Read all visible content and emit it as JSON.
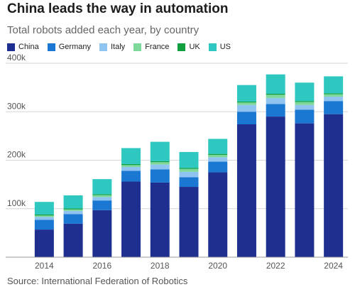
{
  "header": {
    "title": "China leads the way in automation",
    "subtitle": "Total robots added each year, by country"
  },
  "footer": {
    "source": "Source: International Federation of Robotics"
  },
  "chart_data": {
    "type": "bar",
    "stacked": true,
    "categories": [
      "2014",
      "2015",
      "2016",
      "2017",
      "2018",
      "2019",
      "2020",
      "2021",
      "2022",
      "2023",
      "2024"
    ],
    "x_tick_labels": [
      "2014",
      "2016",
      "2018",
      "2020",
      "2022",
      "2024"
    ],
    "y_ticks": [
      100000,
      200000,
      300000,
      400000
    ],
    "y_tick_labels": [
      "100k",
      "200k",
      "300k",
      "400k"
    ],
    "ylim": [
      0,
      400000
    ],
    "grid": true,
    "legend_position": "top-left",
    "series": [
      {
        "name": "China",
        "color": "#1f2f8f",
        "values": [
          57000,
          69000,
          97000,
          156000,
          154000,
          145000,
          175000,
          274000,
          290000,
          276000,
          295000
        ]
      },
      {
        "name": "Germany",
        "color": "#1a78d2",
        "values": [
          20000,
          20000,
          20000,
          22000,
          27000,
          20000,
          22000,
          26000,
          26000,
          28000,
          27000
        ]
      },
      {
        "name": "Italy",
        "color": "#8fc3f0",
        "values": [
          6000,
          6500,
          7000,
          8000,
          10000,
          11000,
          9000,
          14000,
          12000,
          10000,
          9000
        ]
      },
      {
        "name": "France",
        "color": "#7fd89b",
        "values": [
          3000,
          3000,
          4000,
          4000,
          5000,
          6000,
          5000,
          5000,
          7000,
          6000,
          5000
        ]
      },
      {
        "name": "UK",
        "color": "#0f9f3f",
        "values": [
          2000,
          2000,
          2000,
          2000,
          2000,
          2000,
          2000,
          2000,
          2000,
          2000,
          2000
        ]
      },
      {
        "name": "US",
        "color": "#2ec8c0",
        "values": [
          26000,
          27000,
          31000,
          33000,
          40000,
          33000,
          31000,
          34000,
          40000,
          38000,
          35000
        ]
      }
    ]
  }
}
